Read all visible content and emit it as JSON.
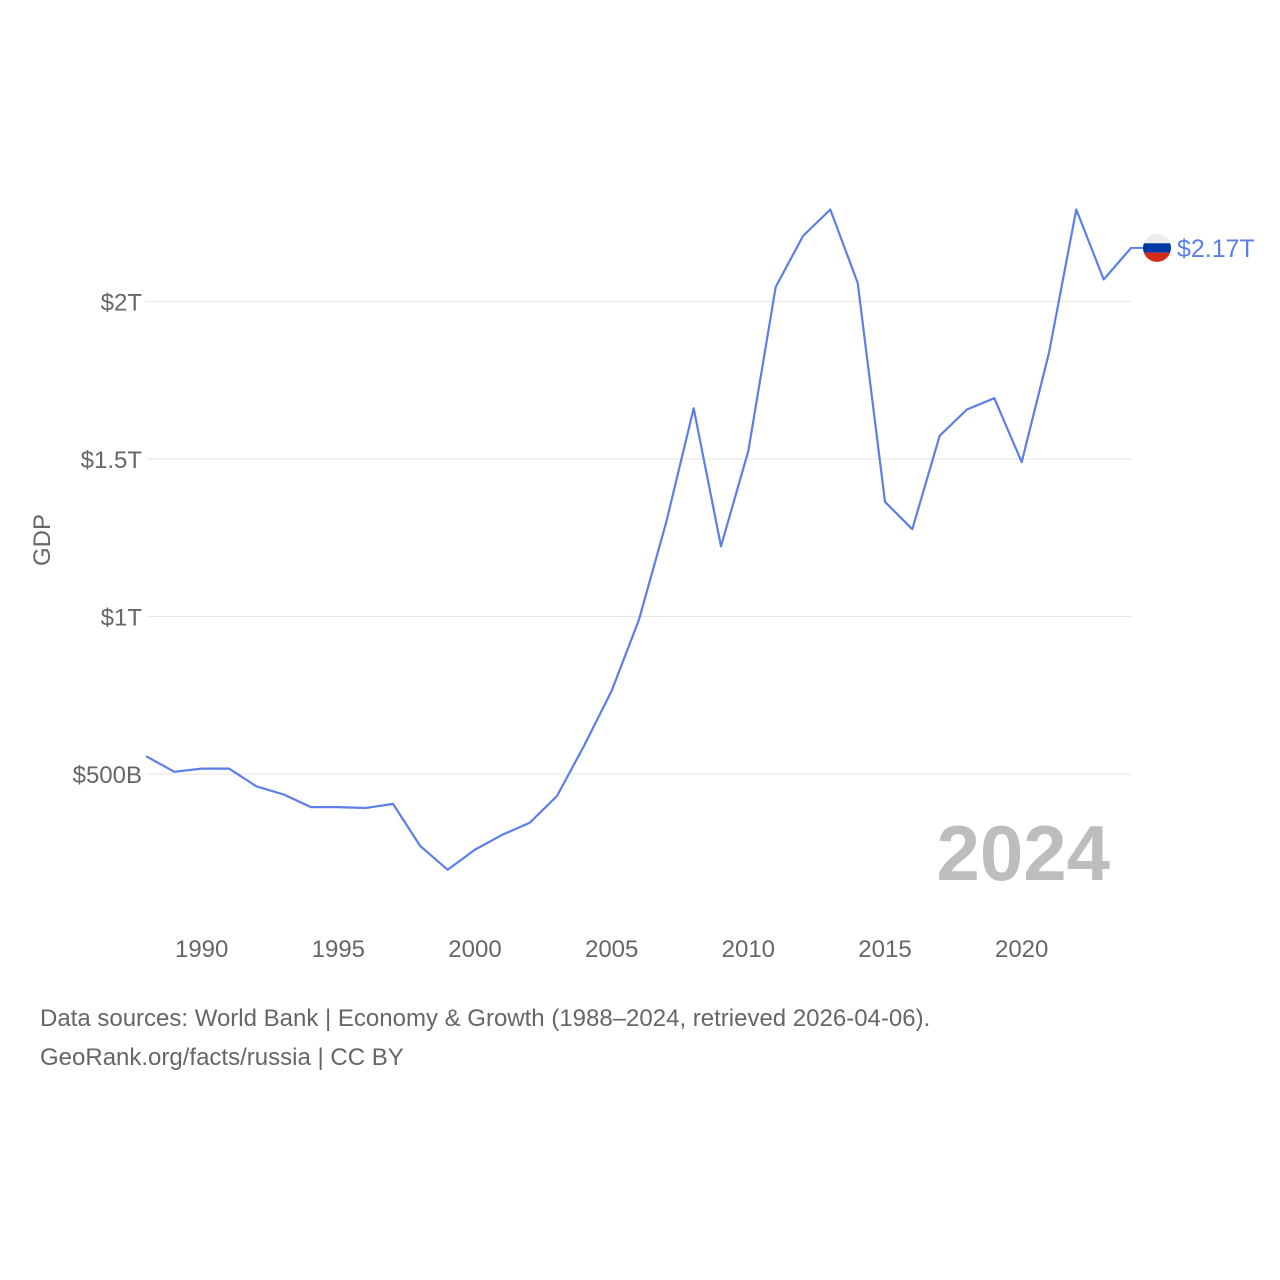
{
  "chart_data": {
    "type": "line",
    "country": "Russia",
    "ylabel": "GDP",
    "xlabel": "",
    "xlim": [
      1988,
      2024
    ],
    "ylim": [
      0,
      2500000000000
    ],
    "x_ticks": [
      1990,
      1995,
      2000,
      2005,
      2010,
      2015,
      2020
    ],
    "x_tick_labels": [
      "1990",
      "1995",
      "2000",
      "2005",
      "2010",
      "2015",
      "2020"
    ],
    "y_ticks": [
      500000000000,
      1000000000000,
      1500000000000,
      2000000000000
    ],
    "y_tick_labels": [
      "$500B",
      "$1T",
      "$1.5T",
      "$2T"
    ],
    "grid": true,
    "current_year": "2024",
    "end_value_label": "$2.17T",
    "color": "#5b7fe6",
    "series": [
      {
        "name": "Russia GDP",
        "x": [
          1988,
          1989,
          1990,
          1991,
          1992,
          1993,
          1994,
          1995,
          1996,
          1997,
          1998,
          1999,
          2000,
          2001,
          2002,
          2003,
          2004,
          2005,
          2006,
          2007,
          2008,
          2009,
          2010,
          2011,
          2012,
          2013,
          2014,
          2015,
          2016,
          2017,
          2018,
          2019,
          2020,
          2021,
          2022,
          2023,
          2024
        ],
        "values": [
          555000000000,
          507000000000,
          517000000000,
          517000000000,
          461000000000,
          435000000000,
          395000000000,
          395000000000,
          392000000000,
          405000000000,
          271000000000,
          196000000000,
          260000000000,
          307000000000,
          345000000000,
          430000000000,
          591000000000,
          764000000000,
          990000000000,
          1300000000000,
          1661000000000,
          1223000000000,
          1525000000000,
          2046000000000,
          2208000000000,
          2292000000000,
          2059000000000,
          1364000000000,
          1277000000000,
          1574000000000,
          1657000000000,
          1693000000000,
          1490000000000,
          1837000000000,
          2292000000000,
          2070000000000,
          2170000000000
        ]
      }
    ]
  },
  "footer": {
    "line1": "Data sources: World Bank | Economy & Growth (1988–2024, retrieved 2026-04-06).",
    "line2": "GeoRank.org/facts/russia | CC BY"
  },
  "colors": {
    "line": "#5b7fe6",
    "flag_white": "#ececec",
    "flag_blue": "#0039a6",
    "flag_red": "#d52b1e"
  }
}
